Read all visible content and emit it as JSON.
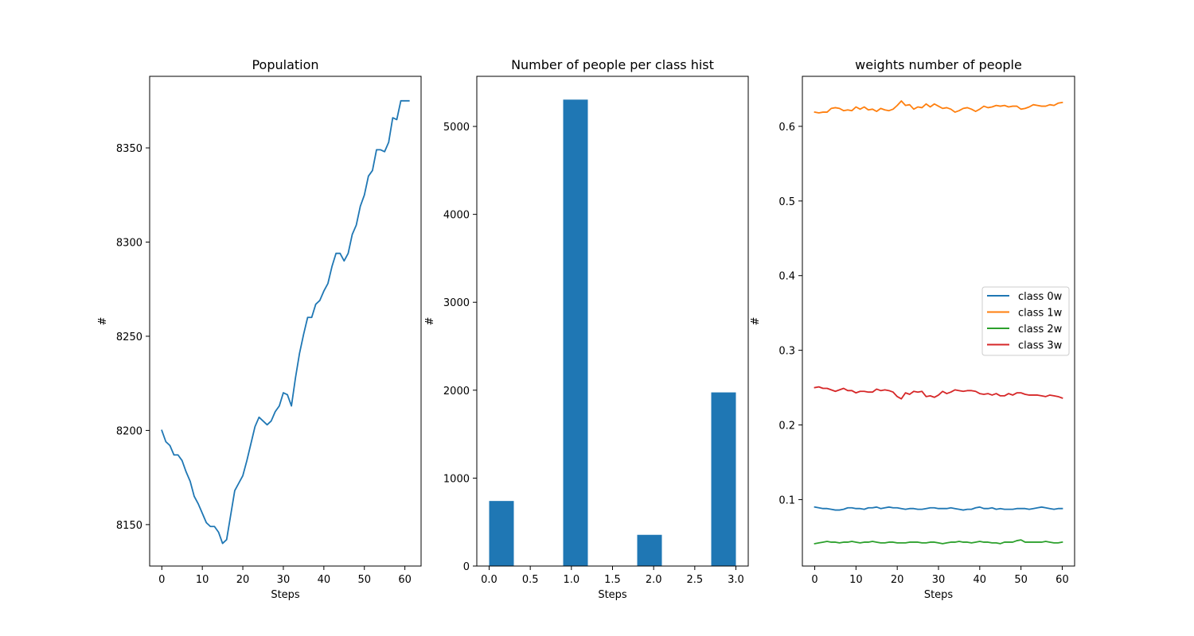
{
  "chart_data": [
    {
      "type": "line",
      "title": "Population",
      "xlabel": "Steps",
      "ylabel": "#",
      "xlim": [
        -3,
        64
      ],
      "ylim": [
        8128,
        8388
      ],
      "xticks": [
        0,
        10,
        20,
        30,
        40,
        50,
        60
      ],
      "yticks": [
        8150,
        8200,
        8250,
        8300,
        8350
      ],
      "series": [
        {
          "name": "Population",
          "color": "#1f77b4",
          "x": [
            0,
            1,
            2,
            3,
            4,
            5,
            6,
            7,
            8,
            9,
            10,
            11,
            12,
            13,
            14,
            15,
            16,
            17,
            18,
            19,
            20,
            21,
            22,
            23,
            24,
            25,
            26,
            27,
            28,
            29,
            30,
            31,
            32,
            33,
            34,
            35,
            36,
            37,
            38,
            39,
            40,
            41,
            42,
            43,
            44,
            45,
            46,
            47,
            48,
            49,
            50,
            51,
            52,
            53,
            54,
            55,
            56,
            57,
            58,
            59,
            60,
            61
          ],
          "values": [
            8200,
            8194,
            8192,
            8187,
            8187,
            8184,
            8178,
            8173,
            8165,
            8161,
            8156,
            8151,
            8149,
            8149,
            8146,
            8140,
            8142,
            8155,
            8168,
            8172,
            8176,
            8184,
            8193,
            8202,
            8207,
            8205,
            8203,
            8205,
            8210,
            8213,
            8220,
            8219,
            8213,
            8228,
            8241,
            8251,
            8260,
            8260,
            8267,
            8269,
            8274,
            8278,
            8287,
            8294,
            8294,
            8290,
            8294,
            8304,
            8309,
            8319,
            8325,
            8335,
            8338,
            8349,
            8349,
            8348,
            8353,
            8366,
            8365,
            8375,
            8375,
            8375
          ]
        }
      ]
    },
    {
      "type": "bar",
      "title": "Number of people per class hist",
      "xlabel": "Steps",
      "ylabel": "#",
      "xlim": [
        -0.15,
        0.15
      ],
      "xlim_full": [
        -0.15,
        3.15
      ],
      "ylim": [
        0,
        5570
      ],
      "xticks": [
        0.0,
        0.5,
        1.0,
        1.5,
        2.0,
        2.5,
        3.0
      ],
      "xtick_labels": [
        "0.0",
        "0.5",
        "1.0",
        "1.5",
        "2.0",
        "2.5",
        "3.0"
      ],
      "yticks": [
        0,
        1000,
        2000,
        3000,
        4000,
        5000
      ],
      "bins": [
        {
          "start": 0.0,
          "end": 0.3,
          "value": 740
        },
        {
          "start": 0.9,
          "end": 1.2,
          "value": 5305
        },
        {
          "start": 1.8,
          "end": 2.1,
          "value": 355
        },
        {
          "start": 2.7,
          "end": 3.0,
          "value": 1975
        }
      ],
      "color": "#1f77b4"
    },
    {
      "type": "line",
      "title": "weights number of people",
      "xlabel": "Steps",
      "ylabel": "#",
      "xlim": [
        -3,
        63
      ],
      "ylim": [
        0.011,
        0.667
      ],
      "xticks": [
        0,
        10,
        20,
        30,
        40,
        50,
        60
      ],
      "yticks": [
        0.1,
        0.2,
        0.3,
        0.4,
        0.5,
        0.6
      ],
      "ytick_labels": [
        "0.1",
        "0.2",
        "0.3",
        "0.4",
        "0.5",
        "0.6"
      ],
      "legend_position": "center-right",
      "series": [
        {
          "name": "class 0w",
          "color": "#1f77b4",
          "values": [
            0.09,
            0.089,
            0.088,
            0.088,
            0.087,
            0.086,
            0.086,
            0.087,
            0.089,
            0.089,
            0.088,
            0.088,
            0.087,
            0.089,
            0.089,
            0.09,
            0.088,
            0.089,
            0.09,
            0.089,
            0.089,
            0.088,
            0.087,
            0.088,
            0.088,
            0.087,
            0.087,
            0.088,
            0.089,
            0.089,
            0.088,
            0.088,
            0.088,
            0.089,
            0.088,
            0.087,
            0.086,
            0.087,
            0.087,
            0.089,
            0.09,
            0.088,
            0.088,
            0.089,
            0.087,
            0.088,
            0.087,
            0.087,
            0.087,
            0.088,
            0.088,
            0.088,
            0.087,
            0.088,
            0.089,
            0.09,
            0.089,
            0.088,
            0.087,
            0.088,
            0.088
          ]
        },
        {
          "name": "class 1w",
          "color": "#ff7f0e",
          "values": [
            0.619,
            0.618,
            0.619,
            0.619,
            0.624,
            0.625,
            0.624,
            0.621,
            0.622,
            0.621,
            0.626,
            0.623,
            0.626,
            0.622,
            0.623,
            0.62,
            0.624,
            0.622,
            0.621,
            0.623,
            0.628,
            0.634,
            0.628,
            0.629,
            0.623,
            0.626,
            0.625,
            0.63,
            0.626,
            0.63,
            0.627,
            0.624,
            0.625,
            0.623,
            0.619,
            0.621,
            0.624,
            0.625,
            0.623,
            0.62,
            0.623,
            0.627,
            0.625,
            0.626,
            0.628,
            0.627,
            0.628,
            0.626,
            0.627,
            0.627,
            0.623,
            0.624,
            0.626,
            0.629,
            0.628,
            0.627,
            0.627,
            0.629,
            0.628,
            0.631,
            0.632
          ]
        },
        {
          "name": "class 2w",
          "color": "#2ca02c",
          "values": [
            0.041,
            0.042,
            0.043,
            0.044,
            0.043,
            0.043,
            0.042,
            0.043,
            0.043,
            0.044,
            0.043,
            0.042,
            0.043,
            0.043,
            0.044,
            0.043,
            0.042,
            0.042,
            0.043,
            0.043,
            0.042,
            0.042,
            0.042,
            0.043,
            0.043,
            0.043,
            0.042,
            0.042,
            0.043,
            0.043,
            0.042,
            0.041,
            0.042,
            0.043,
            0.043,
            0.044,
            0.043,
            0.043,
            0.042,
            0.043,
            0.044,
            0.043,
            0.043,
            0.042,
            0.042,
            0.041,
            0.043,
            0.043,
            0.043,
            0.045,
            0.046,
            0.043,
            0.043,
            0.043,
            0.043,
            0.043,
            0.044,
            0.043,
            0.042,
            0.042,
            0.043
          ]
        },
        {
          "name": "class 3w",
          "color": "#d62728",
          "values": [
            0.25,
            0.251,
            0.249,
            0.249,
            0.247,
            0.245,
            0.247,
            0.249,
            0.246,
            0.246,
            0.243,
            0.245,
            0.245,
            0.244,
            0.244,
            0.248,
            0.246,
            0.247,
            0.246,
            0.244,
            0.238,
            0.235,
            0.243,
            0.241,
            0.245,
            0.244,
            0.245,
            0.238,
            0.239,
            0.237,
            0.24,
            0.245,
            0.242,
            0.244,
            0.247,
            0.246,
            0.245,
            0.246,
            0.246,
            0.245,
            0.242,
            0.241,
            0.242,
            0.24,
            0.242,
            0.239,
            0.239,
            0.242,
            0.24,
            0.243,
            0.243,
            0.241,
            0.24,
            0.24,
            0.24,
            0.239,
            0.238,
            0.24,
            0.239,
            0.238,
            0.236
          ]
        }
      ]
    }
  ]
}
